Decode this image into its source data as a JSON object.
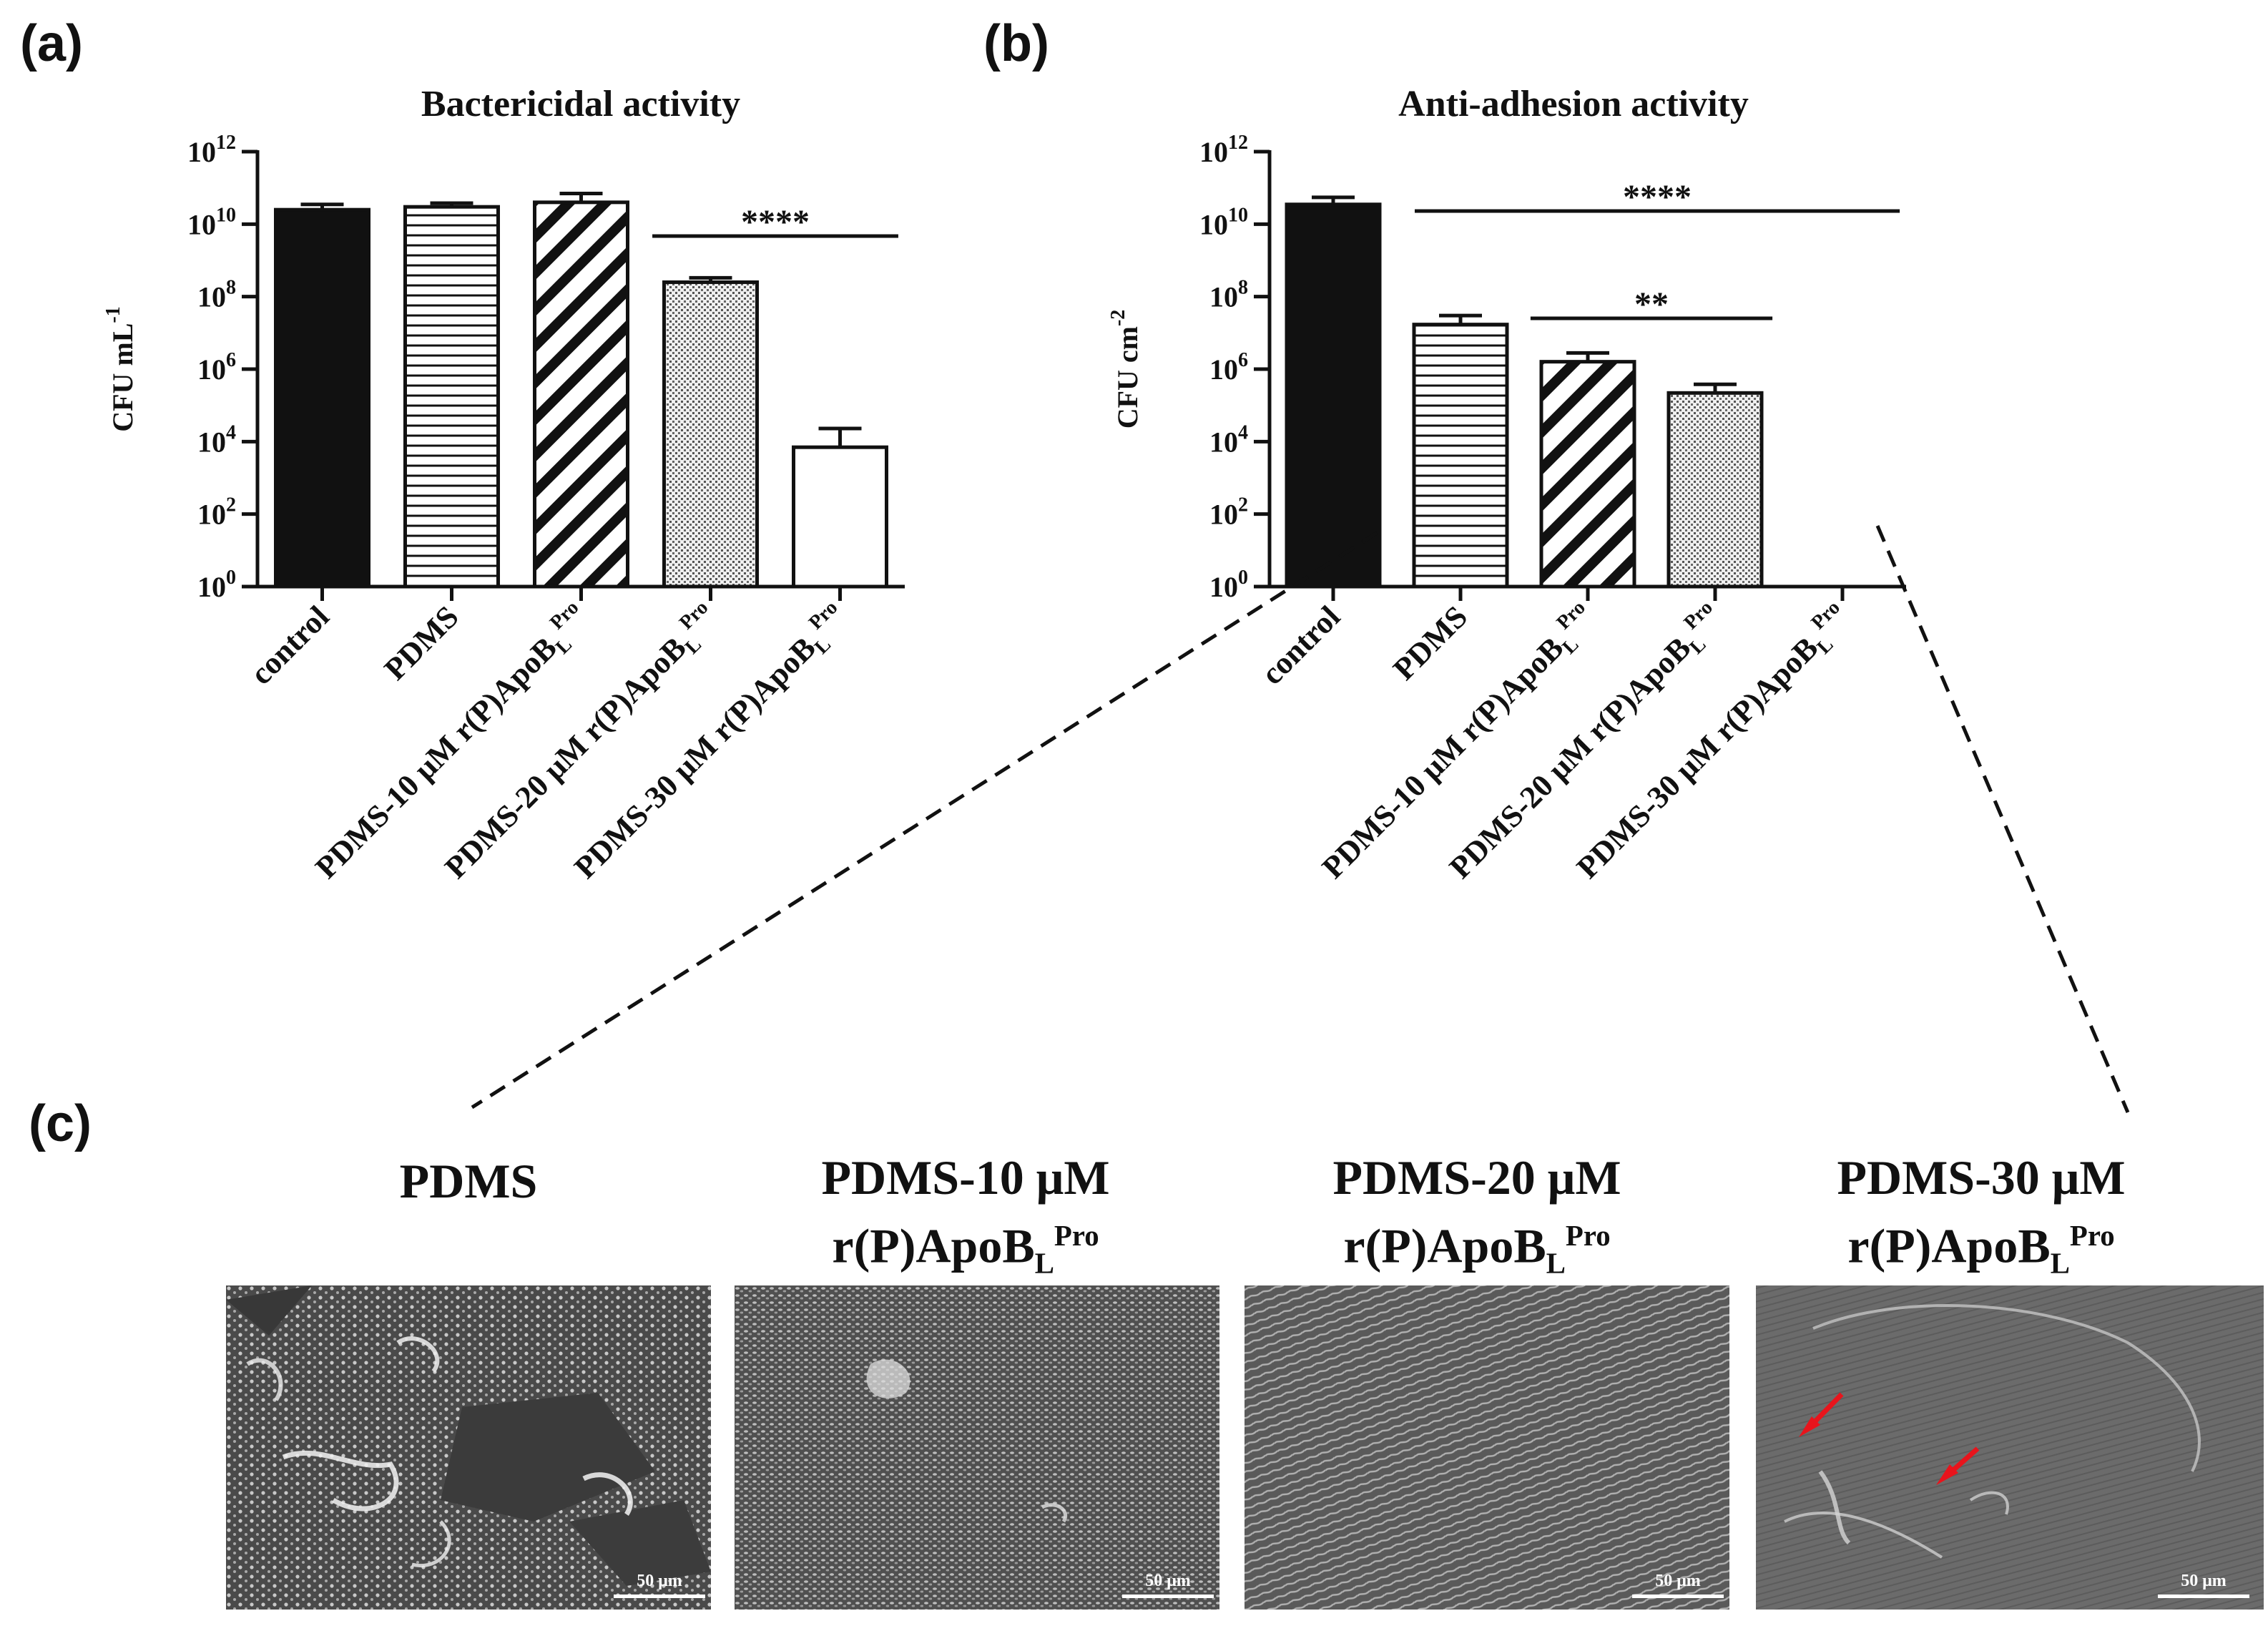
{
  "panels": {
    "a": "(a)",
    "b": "(b)",
    "c": "(c)"
  },
  "chart_data": [
    {
      "id": "a",
      "type": "bar",
      "title": "Bactericidal activity",
      "ylabel": "CFU mL",
      "ylabel_sup": "-1",
      "yscale": "log10",
      "ylim": [
        1,
        1000000000000.0
      ],
      "ytick_exponents": [
        0,
        2,
        4,
        6,
        8,
        10,
        12
      ],
      "ytick_base": "10",
      "categories": [
        {
          "main": "control",
          "sub": "",
          "sup": ""
        },
        {
          "main": "PDMS",
          "sub": "",
          "sup": ""
        },
        {
          "main": "PDMS-10 μM r(P)ApoB",
          "sub": "L",
          "sup": "Pro"
        },
        {
          "main": "PDMS-20 μM r(P)ApoB",
          "sub": "L",
          "sup": "Pro"
        },
        {
          "main": "PDMS-30 μM r(P)ApoB",
          "sub": "L",
          "sup": "Pro"
        }
      ],
      "values": [
        25000000000,
        30000000000,
        40000000000,
        250000000,
        7000
      ],
      "error_upper": [
        35000000000,
        38000000000,
        70000000000,
        330000000,
        23000
      ],
      "patterns": [
        "solid",
        "hlines",
        "diag",
        "dots",
        "empty"
      ],
      "significance": [
        {
          "from": 3,
          "to": 4,
          "label": "****"
        }
      ]
    },
    {
      "id": "b",
      "type": "bar",
      "title": "Anti-adhesion activity",
      "ylabel": "CFU cm",
      "ylabel_sup": "-2",
      "yscale": "log10",
      "ylim": [
        1,
        1000000000000.0
      ],
      "ytick_exponents": [
        0,
        2,
        4,
        6,
        8,
        10,
        12
      ],
      "ytick_base": "10",
      "categories": [
        {
          "main": "control",
          "sub": "",
          "sup": ""
        },
        {
          "main": "PDMS",
          "sub": "",
          "sup": ""
        },
        {
          "main": "PDMS-10 μM r(P)ApoB",
          "sub": "L",
          "sup": "Pro"
        },
        {
          "main": "PDMS-20 μM r(P)ApoB",
          "sub": "L",
          "sup": "Pro"
        },
        {
          "main": "PDMS-30 μM r(P)ApoB",
          "sub": "L",
          "sup": "Pro"
        }
      ],
      "values": [
        35000000000,
        17000000,
        1600000,
        220000,
        0
      ],
      "error_upper": [
        55000000000,
        30000000,
        2800000,
        380000,
        0
      ],
      "patterns": [
        "solid",
        "hlines",
        "diag",
        "dots",
        "empty"
      ],
      "significance": [
        {
          "from": 1,
          "to": 4,
          "label": "****"
        },
        {
          "from": 2,
          "to": 3,
          "label": "**"
        }
      ]
    }
  ],
  "sem": {
    "images": [
      {
        "title_line1": "PDMS",
        "title_line2": "",
        "sub": "",
        "sup": "",
        "scale": "50 μm"
      },
      {
        "title_line1": "PDMS-10 μM",
        "title_line2": "r(P)ApoB",
        "sub": "L",
        "sup": "Pro",
        "scale": "50 μm"
      },
      {
        "title_line1": "PDMS-20 μM",
        "title_line2": "r(P)ApoB",
        "sub": "L",
        "sup": "Pro",
        "scale": "50 μm"
      },
      {
        "title_line1": "PDMS-30 μM",
        "title_line2": "r(P)ApoB",
        "sub": "L",
        "sup": "Pro",
        "scale": "50 μm"
      }
    ],
    "arrow_color": "#e8141c"
  }
}
